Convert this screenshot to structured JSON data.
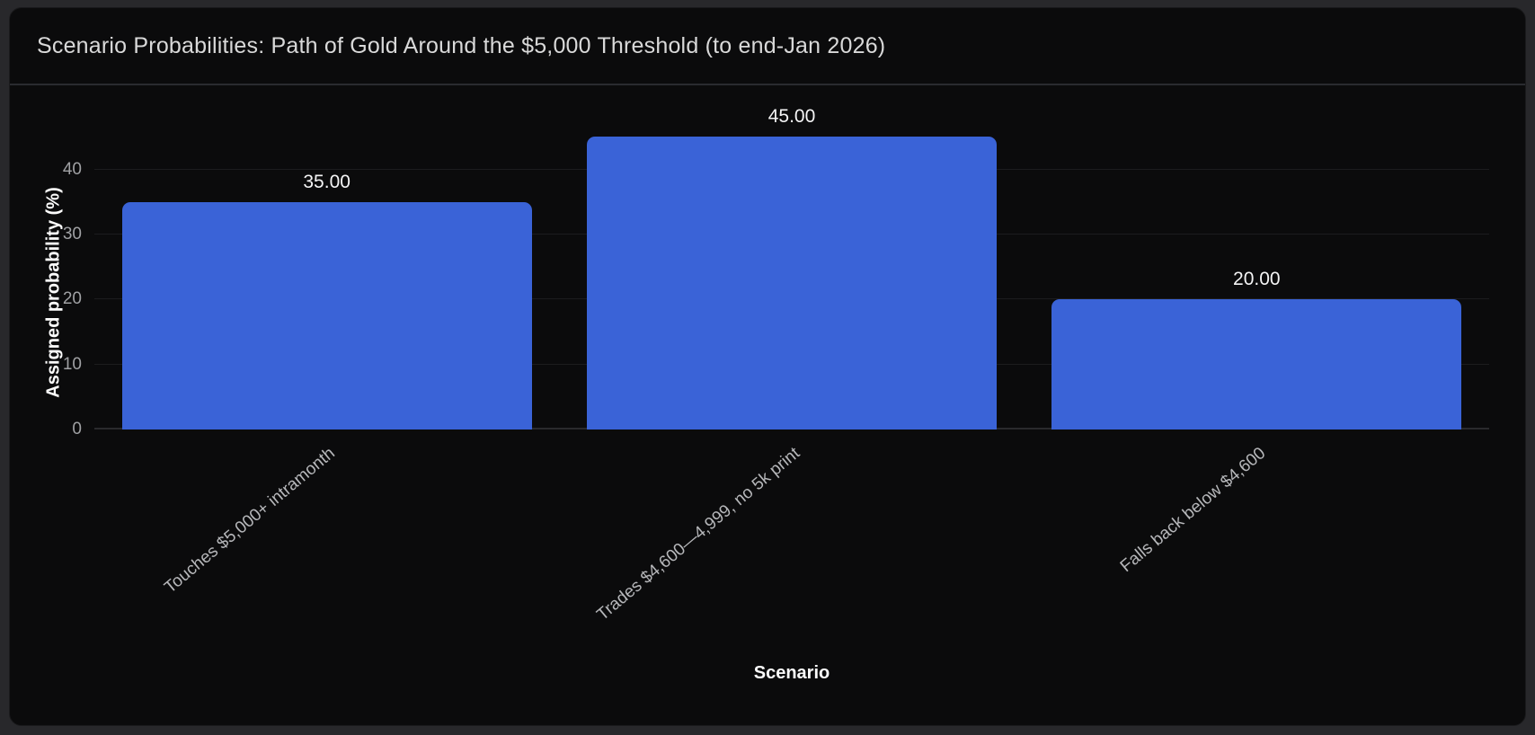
{
  "chart_data": {
    "type": "bar",
    "title": "Scenario Probabilities: Path of Gold Around the $5,000 Threshold (to end-Jan 2026)",
    "xlabel": "Scenario",
    "ylabel": "Assigned probability (%)",
    "categories": [
      "Touches $5,000+ intramonth",
      "Trades $4,600—4,999, no 5k print",
      "Falls back below $4,600"
    ],
    "values": [
      35,
      45,
      20
    ],
    "value_labels": [
      "35.00",
      "45.00",
      "20.00"
    ],
    "yticks": [
      0,
      10,
      20,
      30,
      40
    ],
    "ylim": [
      0,
      47
    ],
    "grid": "horizontal-only",
    "legend": "none",
    "bar_color": "#3a63d7"
  },
  "colors": {
    "page_background": "#28282b",
    "card_background": "#0b0b0c",
    "title_text": "#d9d9d9",
    "axis_title_text": "#fcfcfc",
    "tick_text": "#a0a1a4",
    "category_text": "#b6b7ba",
    "value_label_text": "#f4f4f5",
    "gridline": "#1c1c1e",
    "bar": "#3a63d7"
  }
}
